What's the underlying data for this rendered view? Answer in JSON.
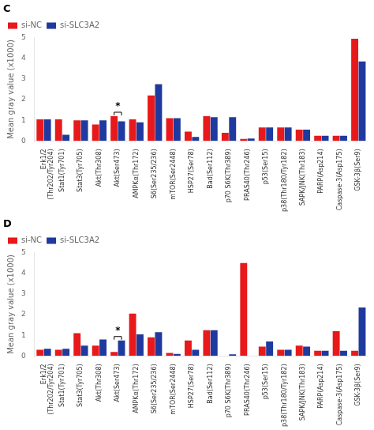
{
  "chart_data": [
    {
      "type": "bar",
      "title": "C",
      "y_label": "Mean gray value (x1000)",
      "categories": [
        "Erk1/2\n(Thr202/Tyr204)",
        "Stat1(Tyr701)",
        "Stat3(Tyr705)",
        "Akt(Thr308)",
        "Akt(Ser473)",
        "AMPKα(Thr172)",
        "S6(Ser235/236)",
        "mTOR(Ser2448)",
        "HSP27(Ser78)",
        "Bad(Ser112)",
        "p70 S6K(Thr389)",
        "PRAS40(Thr246)",
        "p53(Ser15)",
        "p38(Thr180/Tyr182)",
        "SAPK/JNK(Thr183)",
        "PARP(Asp214)",
        "Caspase-3(Asp175)",
        "GSK-3β(Ser9)"
      ],
      "series": [
        {
          "name": "si-NC",
          "color": "#e8191a",
          "values": [
            1.05,
            1.05,
            1.0,
            0.8,
            1.2,
            1.05,
            2.2,
            1.1,
            0.45,
            1.2,
            0.4,
            0.1,
            0.65,
            0.65,
            0.55,
            0.25,
            0.25,
            4.95
          ]
        },
        {
          "name": "si-SLC3A2",
          "color": "#1f3a9e",
          "values": [
            1.05,
            0.3,
            1.0,
            1.0,
            0.95,
            0.9,
            2.75,
            1.1,
            0.2,
            1.15,
            1.15,
            0.12,
            0.65,
            0.65,
            0.55,
            0.25,
            0.25,
            3.85
          ]
        }
      ],
      "ylim": [
        0,
        5
      ],
      "yticks": [
        0,
        1,
        2,
        3,
        4,
        5
      ],
      "grid": false,
      "legend": "upper left",
      "annotations": [
        {
          "text": "*",
          "category": "Akt(Ser473)"
        }
      ]
    },
    {
      "type": "bar",
      "title": "D",
      "y_label": "Mean gray value (x1000)",
      "categories": [
        "Erk1/2\n(Thr202/Tyr204)",
        "Stat1(Tyr701)",
        "Stat3(Tyr705)",
        "Akt(Thr308)",
        "Akt(Ser473)",
        "AMPKα(Thr172)",
        "S6(Ser235/236)",
        "mTOR(Ser2448)",
        "HSP27(Ser78)",
        "Bad(Ser112)",
        "p70 S6K(Thr389)",
        "PRAS40(Thr246)",
        "p53(Ser15)",
        "p38(Thr180/Tyr182)",
        "SAPK/JNK(Thr183)",
        "PARP(Asp214)",
        "Caspase-3(Asp175)",
        "GSK-3β(Ser9)"
      ],
      "series": [
        {
          "name": "si-NC",
          "color": "#e8191a",
          "values": [
            0.3,
            0.3,
            1.1,
            0.5,
            0.2,
            2.05,
            0.9,
            0.15,
            0.75,
            1.25,
            0.0,
            4.5,
            0.45,
            0.3,
            0.5,
            0.25,
            1.2,
            0.25
          ]
        },
        {
          "name": "si-SLC3A2",
          "color": "#1f3a9e",
          "values": [
            0.35,
            0.35,
            0.5,
            0.8,
            0.75,
            1.05,
            1.15,
            0.1,
            0.3,
            1.25,
            0.08,
            0.0,
            0.7,
            0.3,
            0.45,
            0.25,
            0.25,
            2.35
          ]
        }
      ],
      "ylim": [
        0,
        5
      ],
      "yticks": [
        0,
        1,
        2,
        3,
        4,
        5
      ],
      "grid": false,
      "legend": "upper left",
      "annotations": [
        {
          "text": "*",
          "category": "Akt(Ser473)"
        }
      ]
    }
  ]
}
